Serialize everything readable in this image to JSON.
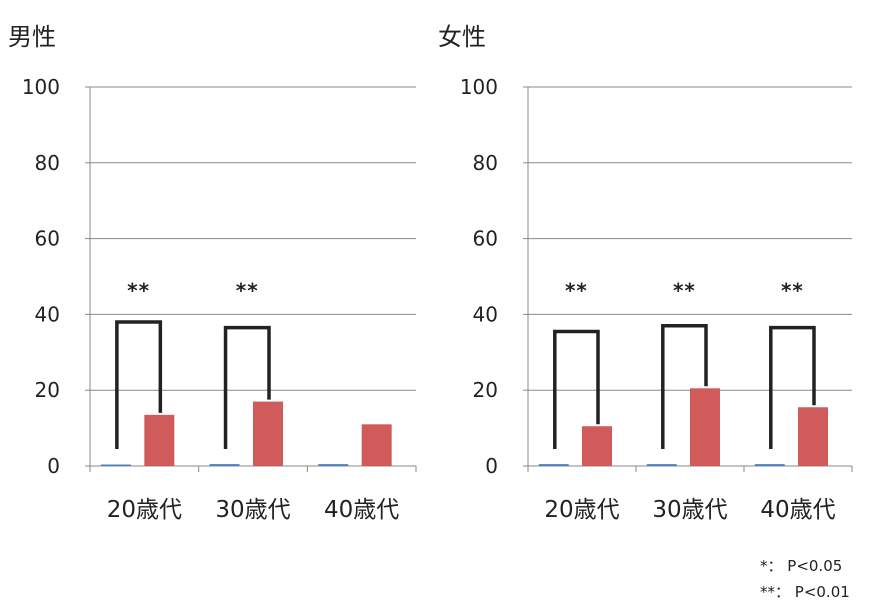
{
  "chart_data": [
    {
      "type": "bar",
      "title": "男性",
      "categories": [
        "20歳代",
        "30歳代",
        "40歳代"
      ],
      "ylim": [
        0,
        100
      ],
      "yticks": [
        "0",
        "20",
        "40",
        "60",
        "80",
        "100"
      ],
      "grid": true,
      "series": [
        {
          "color": "#4f81bd",
          "values": [
            0,
            0.5,
            0.5
          ]
        },
        {
          "color": "#d15b5b",
          "values": [
            13.5,
            17,
            11
          ]
        }
      ],
      "significance": [
        {
          "category": "20歳代",
          "label": "**",
          "bracket_top": 38
        },
        {
          "category": "30歳代",
          "label": "**",
          "bracket_top": 36.5
        }
      ]
    },
    {
      "type": "bar",
      "title": "女性",
      "categories": [
        "20歳代",
        "30歳代",
        "40歳代"
      ],
      "ylim": [
        0,
        100
      ],
      "yticks": [
        "0",
        "20",
        "40",
        "60",
        "80",
        "100"
      ],
      "grid": true,
      "series": [
        {
          "color": "#4f81bd",
          "values": [
            0.5,
            0.5,
            0.5
          ]
        },
        {
          "color": "#d15b5b",
          "values": [
            10.5,
            20.5,
            15.5
          ]
        }
      ],
      "significance": [
        {
          "category": "20歳代",
          "label": "**",
          "bracket_top": 35.5
        },
        {
          "category": "30歳代",
          "label": "**",
          "bracket_top": 37
        },
        {
          "category": "40歳代",
          "label": "**",
          "bracket_top": 36.5
        }
      ]
    }
  ],
  "notes": [
    "*： P<0.05",
    "**： P<0.01"
  ]
}
